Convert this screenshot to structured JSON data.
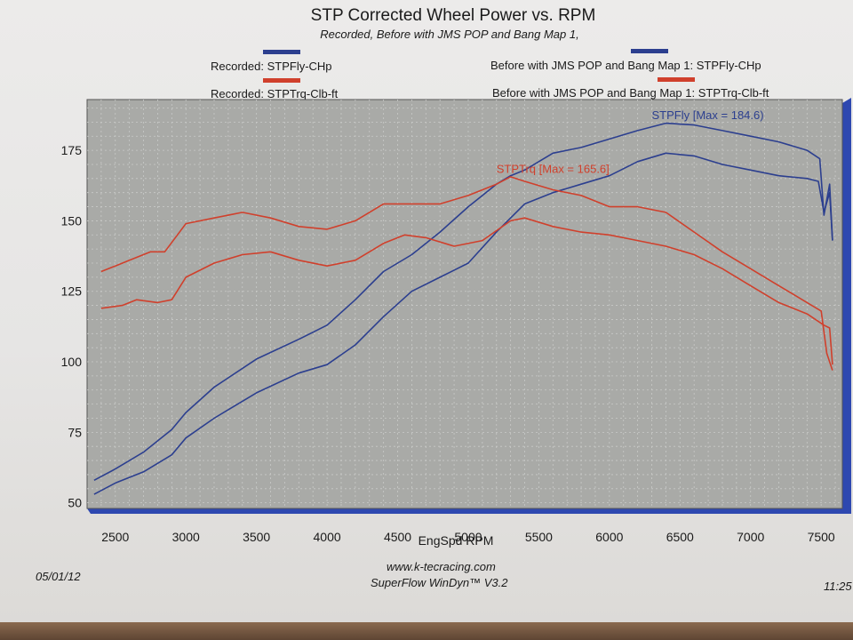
{
  "chart_data": {
    "type": "line",
    "title": "STP Corrected Wheel Power vs. RPM",
    "subtitle": "Recorded, Before with JMS POP and Bang Map 1,",
    "xlabel": "EngSpd RPM",
    "ylabel": "",
    "xlim": [
      2300,
      7650
    ],
    "ylim": [
      48,
      193
    ],
    "xticks": [
      2500,
      3000,
      3500,
      4000,
      4500,
      5000,
      5500,
      6000,
      6500,
      7000,
      7500
    ],
    "yticks": [
      50,
      75,
      100,
      125,
      150,
      175
    ],
    "grid": true,
    "legend": [
      {
        "label": "Recorded: STPFly-CHp",
        "color": "#2c3f8f"
      },
      {
        "label": "Recorded: STPTrq-Clb-ft",
        "color": "#d0402c"
      },
      {
        "label": "Before with JMS POP and Bang Map 1: STPFly-CHp",
        "color": "#2c3f8f"
      },
      {
        "label": "Before with JMS POP and Bang Map 1: STPTrq-Clb-ft",
        "color": "#d0402c"
      }
    ],
    "annotations": [
      {
        "text": "STPFly [Max = 184.6)",
        "x": 6300,
        "y": 186,
        "color": "#2c3f8f"
      },
      {
        "text": "STPTrq [Max = 165.6]",
        "x": 5200,
        "y": 167,
        "color": "#d0402c"
      }
    ],
    "series": [
      {
        "name": "Recorded: STPFly-CHp",
        "color": "#2c3f8f",
        "x": [
          2350,
          2500,
          2700,
          2900,
          3000,
          3200,
          3500,
          3800,
          4000,
          4200,
          4400,
          4600,
          4800,
          5000,
          5200,
          5300,
          5400,
          5500,
          5600,
          5800,
          6000,
          6200,
          6400,
          6600,
          6800,
          7000,
          7200,
          7400,
          7490,
          7520,
          7560,
          7580
        ],
        "values": [
          58,
          62,
          68,
          76,
          82,
          91,
          101,
          108,
          113,
          122,
          132,
          138,
          146,
          155,
          163,
          166,
          168,
          171,
          174,
          176,
          179,
          182,
          184.6,
          184,
          182,
          180,
          178,
          175,
          172,
          152,
          163,
          143
        ]
      },
      {
        "name": "Before with JMS POP and Bang Map 1: STPFly-CHp",
        "color": "#2c3f8f",
        "x": [
          2350,
          2500,
          2700,
          2900,
          3000,
          3200,
          3500,
          3800,
          4000,
          4200,
          4400,
          4600,
          4800,
          5000,
          5200,
          5400,
          5600,
          5800,
          6000,
          6200,
          6400,
          6600,
          6800,
          7000,
          7200,
          7400,
          7480,
          7520,
          7560,
          7580
        ],
        "values": [
          53,
          57,
          61,
          67,
          73,
          80,
          89,
          96,
          99,
          106,
          116,
          125,
          130,
          135,
          146,
          156,
          160,
          163,
          166,
          171,
          174,
          173,
          170,
          168,
          166,
          165,
          164,
          153,
          160,
          143
        ]
      },
      {
        "name": "Recorded: STPTrq-Clb-ft",
        "color": "#d0402c",
        "x": [
          2400,
          2500,
          2600,
          2750,
          2850,
          3000,
          3200,
          3400,
          3600,
          3800,
          4000,
          4200,
          4400,
          4600,
          4800,
          5000,
          5200,
          5300,
          5400,
          5600,
          5800,
          6000,
          6200,
          6400,
          6600,
          6800,
          7000,
          7200,
          7400,
          7500,
          7540,
          7580
        ],
        "values": [
          132,
          134,
          136,
          139,
          139,
          149,
          151,
          153,
          151,
          148,
          147,
          150,
          156,
          156,
          156,
          159,
          163,
          165.6,
          164,
          161,
          159,
          155,
          155,
          153,
          146,
          139,
          133,
          127,
          121,
          118,
          103,
          97
        ]
      },
      {
        "name": "Before with JMS POP and Bang Map 1: STPTrq-Clb-ft",
        "color": "#d0402c",
        "x": [
          2400,
          2550,
          2650,
          2800,
          2900,
          3000,
          3200,
          3400,
          3600,
          3800,
          4000,
          4200,
          4400,
          4550,
          4700,
          4900,
          5100,
          5300,
          5400,
          5600,
          5800,
          6000,
          6200,
          6400,
          6600,
          6800,
          7000,
          7200,
          7400,
          7520,
          7560,
          7580
        ],
        "values": [
          119,
          120,
          122,
          121,
          122,
          130,
          135,
          138,
          139,
          136,
          134,
          136,
          142,
          145,
          144,
          141,
          143,
          150,
          151,
          148,
          146,
          145,
          143,
          141,
          138,
          133,
          127,
          121,
          117,
          113,
          112,
          99
        ]
      }
    ]
  },
  "footer": {
    "url": "www.k-tecracing.com",
    "software": "SuperFlow WinDyn™ V3.2",
    "date": "05/01/12",
    "time": "11:25"
  }
}
